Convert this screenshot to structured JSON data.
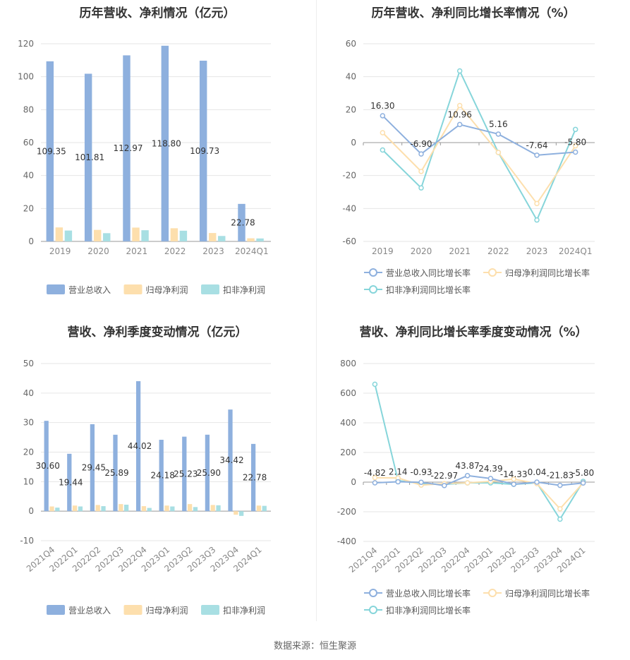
{
  "footer": {
    "source": "数据来源：恒生聚源"
  },
  "chart_data": [
    {
      "type": "bar",
      "title": "历年营收、净利情况（亿元）",
      "categories": [
        "2019",
        "2020",
        "2021",
        "2022",
        "2023",
        "2024Q1"
      ],
      "ylim": [
        0,
        120
      ],
      "yticks": [
        0,
        20,
        40,
        60,
        80,
        100,
        120
      ],
      "grid": true,
      "legend_position": "bottom",
      "series": [
        {
          "name": "营业总收入",
          "color": "#8eb0de",
          "values": [
            109.35,
            101.81,
            112.97,
            118.8,
            109.73,
            22.78
          ],
          "labels": [
            "109.35",
            "101.81",
            "112.97",
            "118.80",
            "109.73",
            "22.78"
          ]
        },
        {
          "name": "归母净利润",
          "color": "#fddfad",
          "values": [
            8.5,
            7.0,
            8.4,
            8.0,
            5.1,
            1.9
          ]
        },
        {
          "name": "扣非净利润",
          "color": "#a8dfe3",
          "values": [
            6.6,
            5.0,
            6.8,
            6.5,
            3.3,
            1.8
          ]
        }
      ]
    },
    {
      "type": "line",
      "title": "历年营收、净利同比增长率情况（%）",
      "categories": [
        "2019",
        "2020",
        "2021",
        "2022",
        "2023",
        "2024Q1"
      ],
      "ylim": [
        -60,
        60
      ],
      "yticks": [
        -60,
        -40,
        -20,
        0,
        20,
        40,
        60
      ],
      "grid": true,
      "legend_position": "bottom",
      "series": [
        {
          "name": "营业总收入同比增长率",
          "color": "#8eb0de",
          "values": [
            16.3,
            -6.9,
            10.96,
            5.16,
            -7.64,
            -5.8
          ],
          "labels": [
            "16.30",
            "-6.90",
            "10.96",
            "5.16",
            "-7.64",
            "-5.80"
          ]
        },
        {
          "name": "归母净利润同比增长率",
          "color": "#fddfad",
          "values": [
            6.0,
            -17.5,
            22.5,
            -6.0,
            -37.0,
            -2.0
          ]
        },
        {
          "name": "扣非净利润同比增长率",
          "color": "#86d5da",
          "values": [
            -4.5,
            -27.5,
            43.5,
            -6.0,
            -47.0,
            8.0
          ]
        }
      ]
    },
    {
      "type": "bar",
      "title": "营收、净利季度变动情况（亿元）",
      "categories": [
        "2021Q4",
        "2022Q1",
        "2022Q2",
        "2022Q3",
        "2022Q4",
        "2023Q1",
        "2023Q2",
        "2023Q3",
        "2023Q4",
        "2024Q1"
      ],
      "ylim": [
        -10,
        50
      ],
      "yticks": [
        -10,
        0,
        10,
        20,
        30,
        40,
        50
      ],
      "grid": true,
      "legend_position": "bottom",
      "series": [
        {
          "name": "营业总收入",
          "color": "#8eb0de",
          "values": [
            30.6,
            19.44,
            29.45,
            25.89,
            44.02,
            24.18,
            25.23,
            25.9,
            34.42,
            22.78
          ],
          "labels": [
            "30.60",
            "19.44",
            "29.45",
            "25.89",
            "44.02",
            "24.18",
            "25.23",
            "25.90",
            "34.42",
            "22.78"
          ]
        },
        {
          "name": "归母净利润",
          "color": "#fddfad",
          "values": [
            1.6,
            1.9,
            2.1,
            2.4,
            1.7,
            1.9,
            2.4,
            2.1,
            -1.2,
            1.9
          ]
        },
        {
          "name": "扣非净利润",
          "color": "#a8dfe3",
          "values": [
            1.2,
            1.6,
            1.7,
            2.2,
            1.1,
            1.6,
            1.4,
            2.0,
            -1.6,
            1.8
          ]
        }
      ]
    },
    {
      "type": "line",
      "title": "营收、净利同比增长率季度变动情况（%）",
      "categories": [
        "2021Q4",
        "2022Q1",
        "2022Q2",
        "2022Q3",
        "2022Q4",
        "2023Q1",
        "2023Q2",
        "2023Q3",
        "2023Q4",
        "2024Q1"
      ],
      "ylim": [
        -400,
        800
      ],
      "yticks": [
        -400,
        -200,
        0,
        200,
        400,
        600,
        800
      ],
      "grid": true,
      "legend_position": "bottom",
      "series": [
        {
          "name": "营业总收入同比增长率",
          "color": "#8eb0de",
          "values": [
            -4.82,
            2.14,
            -0.93,
            -22.97,
            43.87,
            24.39,
            -14.33,
            0.04,
            -21.83,
            -5.8
          ],
          "labels": [
            "-4.82",
            "2.14",
            "-0.93",
            "-22.97",
            "43.87",
            "24.39",
            "-14.33",
            "0.04",
            "-21.83",
            "-5.80"
          ]
        },
        {
          "name": "归母净利润同比增长率",
          "color": "#fddfad",
          "values": [
            30,
            28,
            -20,
            -10,
            -5,
            5,
            20,
            -10,
            -180,
            -5
          ]
        },
        {
          "name": "扣非净利润同比增长率",
          "color": "#86d5da",
          "values": [
            660,
            10,
            -10,
            -15,
            -5,
            -5,
            -15,
            -5,
            -250,
            5
          ]
        }
      ]
    }
  ]
}
